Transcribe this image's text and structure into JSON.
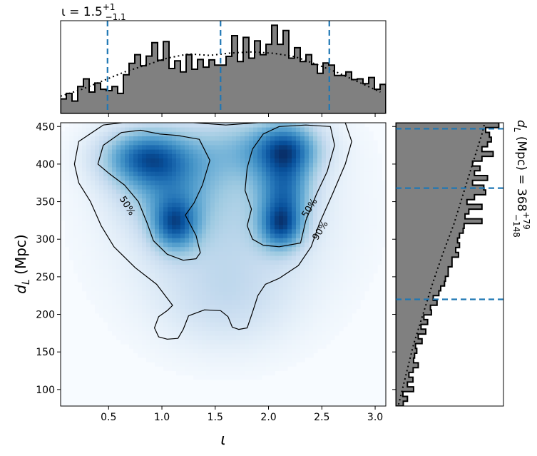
{
  "chart_data": {
    "type": "corner",
    "top_panel": {
      "title": {
        "prefix": "ι = 1.5",
        "sup": "+1",
        "sub": "−1.1"
      },
      "bins_step": [
        0.42,
        0.58,
        0.36,
        0.78,
        1.0,
        0.62,
        0.88,
        0.7,
        0.66,
        0.78,
        0.58,
        1.12,
        1.45,
        1.7,
        1.38,
        1.66,
        2.05,
        1.54,
        2.08,
        1.3,
        1.52,
        1.2,
        1.7,
        1.28,
        1.56,
        1.34,
        1.55,
        1.4,
        1.4,
        1.65,
        2.25,
        1.5,
        2.2,
        1.6,
        2.1,
        1.7,
        2.0,
        2.55,
        2.0,
        2.4,
        1.6,
        1.9,
        1.5,
        1.7,
        1.42,
        1.16,
        1.46,
        1.4,
        1.1,
        1.1,
        1.2,
        0.98,
        1.0,
        0.86,
        1.04,
        0.7,
        0.84
      ],
      "dotted_kde": [
        [
          0.05,
          0.5
        ],
        [
          0.25,
          0.7
        ],
        [
          0.45,
          0.95
        ],
        [
          0.65,
          1.2
        ],
        [
          0.85,
          1.4
        ],
        [
          1.05,
          1.6
        ],
        [
          1.25,
          1.72
        ],
        [
          1.45,
          1.68
        ],
        [
          1.65,
          1.75
        ],
        [
          1.85,
          1.78
        ],
        [
          2.05,
          1.74
        ],
        [
          2.25,
          1.64
        ],
        [
          2.45,
          1.42
        ],
        [
          2.65,
          1.18
        ],
        [
          2.85,
          0.9
        ],
        [
          3.05,
          0.62
        ]
      ],
      "quantile_lines": [
        0.49,
        1.55,
        2.57
      ]
    },
    "main_panel": {
      "xlabel": "ι",
      "ylabel_main": "d",
      "ylabel_sub": "L",
      "ylabel_suffix": " (Mpc)",
      "xlim": [
        0.05,
        3.1
      ],
      "ylim": [
        78,
        455
      ],
      "xticks": [
        0.5,
        1.0,
        1.5,
        2.0,
        2.5,
        3.0
      ],
      "xtick_labels": [
        "0.5",
        "1.0",
        "1.5",
        "2.0",
        "2.5",
        "3.0"
      ],
      "yticks": [
        100,
        150,
        200,
        250,
        300,
        350,
        400,
        450
      ],
      "ytick_labels": [
        "100",
        "150",
        "200",
        "250",
        "300",
        "350",
        "400",
        "450"
      ],
      "density_blobs": [
        {
          "x": 0.85,
          "y": 410,
          "sx": 0.28,
          "sy": 25,
          "w": 1.0
        },
        {
          "x": 1.12,
          "y": 320,
          "sx": 0.15,
          "sy": 24,
          "w": 0.95
        },
        {
          "x": 2.17,
          "y": 420,
          "sx": 0.2,
          "sy": 24,
          "w": 0.95
        },
        {
          "x": 2.12,
          "y": 318,
          "sx": 0.14,
          "sy": 22,
          "w": 1.0
        },
        {
          "x": 2.15,
          "y": 365,
          "sx": 0.17,
          "sy": 28,
          "w": 0.75
        },
        {
          "x": 1.6,
          "y": 330,
          "sx": 0.6,
          "sy": 80,
          "w": 0.35
        },
        {
          "x": 1.05,
          "y": 370,
          "sx": 0.3,
          "sy": 35,
          "w": 0.5
        },
        {
          "x": 1.6,
          "y": 215,
          "sx": 0.4,
          "sy": 40,
          "w": 0.18
        },
        {
          "x": 1.8,
          "y": 420,
          "sx": 0.4,
          "sy": 30,
          "w": 0.4
        }
      ],
      "contours": [
        {
          "label": "50%",
          "label_x": 0.68,
          "label_y": 345,
          "rotation": 58,
          "points": [
            [
              0.4,
              400
            ],
            [
              0.45,
              425
            ],
            [
              0.62,
              442
            ],
            [
              0.8,
              445
            ],
            [
              0.98,
              440
            ],
            [
              1.15,
              438
            ],
            [
              1.35,
              433
            ],
            [
              1.45,
              405
            ],
            [
              1.38,
              372
            ],
            [
              1.3,
              348
            ],
            [
              1.22,
              332
            ],
            [
              1.32,
              305
            ],
            [
              1.36,
              282
            ],
            [
              1.32,
              274
            ],
            [
              1.2,
              272
            ],
            [
              1.05,
              280
            ],
            [
              0.92,
              298
            ],
            [
              0.86,
              322
            ],
            [
              0.78,
              350
            ],
            [
              0.65,
              372
            ],
            [
              0.5,
              388
            ],
            [
              0.4,
              400
            ]
          ]
        },
        {
          "label": "50%",
          "label_x": 2.38,
          "label_y": 342,
          "rotation": -58,
          "points": [
            [
              1.85,
              420
            ],
            [
              1.95,
              440
            ],
            [
              2.1,
              450
            ],
            [
              2.35,
              452
            ],
            [
              2.58,
              450
            ],
            [
              2.62,
              425
            ],
            [
              2.55,
              390
            ],
            [
              2.45,
              360
            ],
            [
              2.35,
              325
            ],
            [
              2.3,
              295
            ],
            [
              2.1,
              290
            ],
            [
              1.95,
              292
            ],
            [
              1.85,
              300
            ],
            [
              1.8,
              318
            ],
            [
              1.84,
              340
            ],
            [
              1.78,
              365
            ],
            [
              1.8,
              395
            ],
            [
              1.85,
              420
            ]
          ]
        },
        {
          "label": "90%",
          "label_x": 2.48,
          "label_y": 312,
          "rotation": -58,
          "points": [
            [
              0.18,
              400
            ],
            [
              0.22,
              430
            ],
            [
              0.45,
              452
            ],
            [
              0.8,
              458
            ],
            [
              1.2,
              456
            ],
            [
              1.6,
              452
            ],
            [
              2.0,
              456
            ],
            [
              2.4,
              458
            ],
            [
              2.72,
              455
            ],
            [
              2.78,
              430
            ],
            [
              2.72,
              400
            ],
            [
              2.6,
              360
            ],
            [
              2.48,
              322
            ],
            [
              2.4,
              290
            ],
            [
              2.28,
              265
            ],
            [
              2.1,
              248
            ],
            [
              1.97,
              240
            ],
            [
              1.9,
              225
            ],
            [
              1.85,
              203
            ],
            [
              1.8,
              182
            ],
            [
              1.72,
              180
            ],
            [
              1.66,
              183
            ],
            [
              1.62,
              197
            ],
            [
              1.55,
              205
            ],
            [
              1.4,
              206
            ],
            [
              1.25,
              198
            ],
            [
              1.2,
              180
            ],
            [
              1.15,
              168
            ],
            [
              1.05,
              167
            ],
            [
              0.97,
              170
            ],
            [
              0.93,
              182
            ],
            [
              0.97,
              197
            ],
            [
              1.05,
              205
            ],
            [
              1.1,
              212
            ],
            [
              0.95,
              240
            ],
            [
              0.75,
              262
            ],
            [
              0.55,
              290
            ],
            [
              0.43,
              318
            ],
            [
              0.33,
              350
            ],
            [
              0.22,
              375
            ],
            [
              0.18,
              400
            ]
          ]
        }
      ]
    },
    "right_panel": {
      "label": {
        "prefix": "d",
        "sub_L": "L",
        "middle": " (Mpc) = 368",
        "sup": "+79",
        "sub": "−148"
      },
      "bins_step": [
        0.4,
        0.62,
        0.38,
        0.95,
        0.62,
        0.92,
        0.7,
        0.93,
        1.2,
        0.95,
        1.0,
        1.12,
        1.05,
        1.4,
        1.2,
        1.6,
        1.35,
        1.7,
        1.5,
        1.9,
        1.85,
        2.2,
        2.0,
        2.3,
        2.4,
        2.6,
        2.65,
        2.8,
        2.8,
        3.0,
        3.0,
        3.35,
        3.2,
        3.4,
        3.3,
        3.4,
        3.6,
        3.65,
        4.6,
        3.7,
        3.9,
        4.6,
        3.8,
        4.2,
        4.8,
        4.7,
        4.1,
        4.9,
        4.2,
        4.5,
        4.1,
        4.6,
        5.2,
        4.6,
        4.9,
        5.1,
        5.0,
        4.8,
        5.5
      ],
      "dotted_kde": [
        [
          80,
          0.15
        ],
        [
          120,
          0.55
        ],
        [
          160,
          0.95
        ],
        [
          200,
          1.45
        ],
        [
          240,
          1.95
        ],
        [
          280,
          2.5
        ],
        [
          320,
          3.1
        ],
        [
          360,
          3.6
        ],
        [
          400,
          4.1
        ],
        [
          440,
          4.6
        ],
        [
          455,
          4.75
        ]
      ],
      "quantile_lines": [
        220,
        368,
        447
      ]
    }
  }
}
